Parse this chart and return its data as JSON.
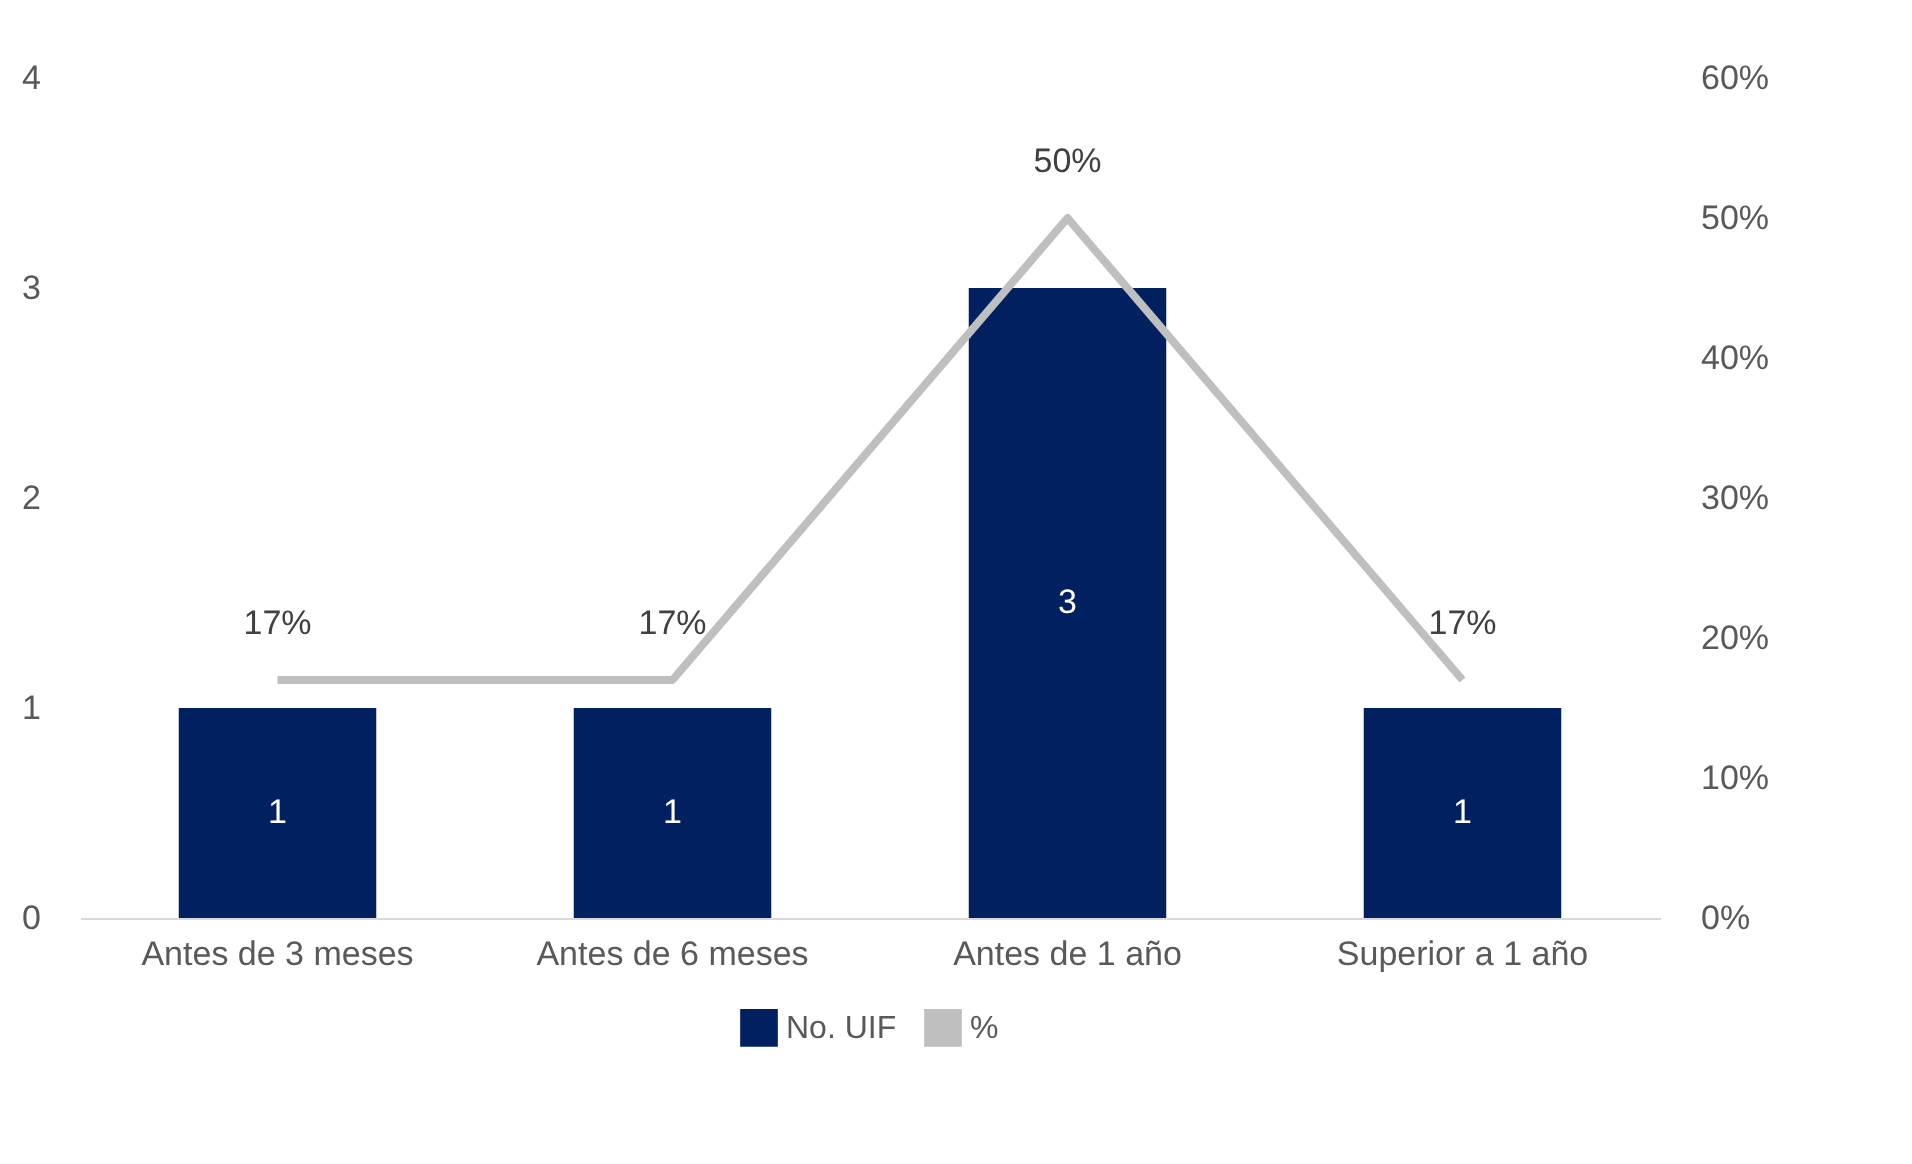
{
  "chart_data": {
    "type": "bar",
    "categories": [
      "Antes de 3 meses",
      "Antes de 6 meses",
      "Antes de 1 año",
      "Superior a 1 año"
    ],
    "ylim": [
      0,
      4
    ],
    "yticks": [
      0,
      1,
      2,
      3,
      4
    ],
    "y2lim": [
      0,
      60
    ],
    "y2ticks": [
      {
        "value": 0,
        "label": "0%"
      },
      {
        "value": 10,
        "label": "10%"
      },
      {
        "value": 20,
        "label": "20%"
      },
      {
        "value": 30,
        "label": "30%"
      },
      {
        "value": 40,
        "label": "40%"
      },
      {
        "value": 50,
        "label": "50%"
      },
      {
        "value": 60,
        "label": "60%"
      }
    ],
    "series": [
      {
        "name": "No. UIF",
        "color": "#002060",
        "values": [
          1,
          1,
          3,
          1
        ],
        "value_labels": [
          "1",
          "1",
          "3",
          "1"
        ]
      },
      {
        "name": "%",
        "type": "line",
        "axis": "y2",
        "color": "#bfbfbf",
        "values": [
          17,
          17,
          50,
          17
        ],
        "value_labels": [
          "17%",
          "17%",
          "50%",
          "17%"
        ]
      }
    ],
    "grid": false,
    "legend": "bottom"
  }
}
